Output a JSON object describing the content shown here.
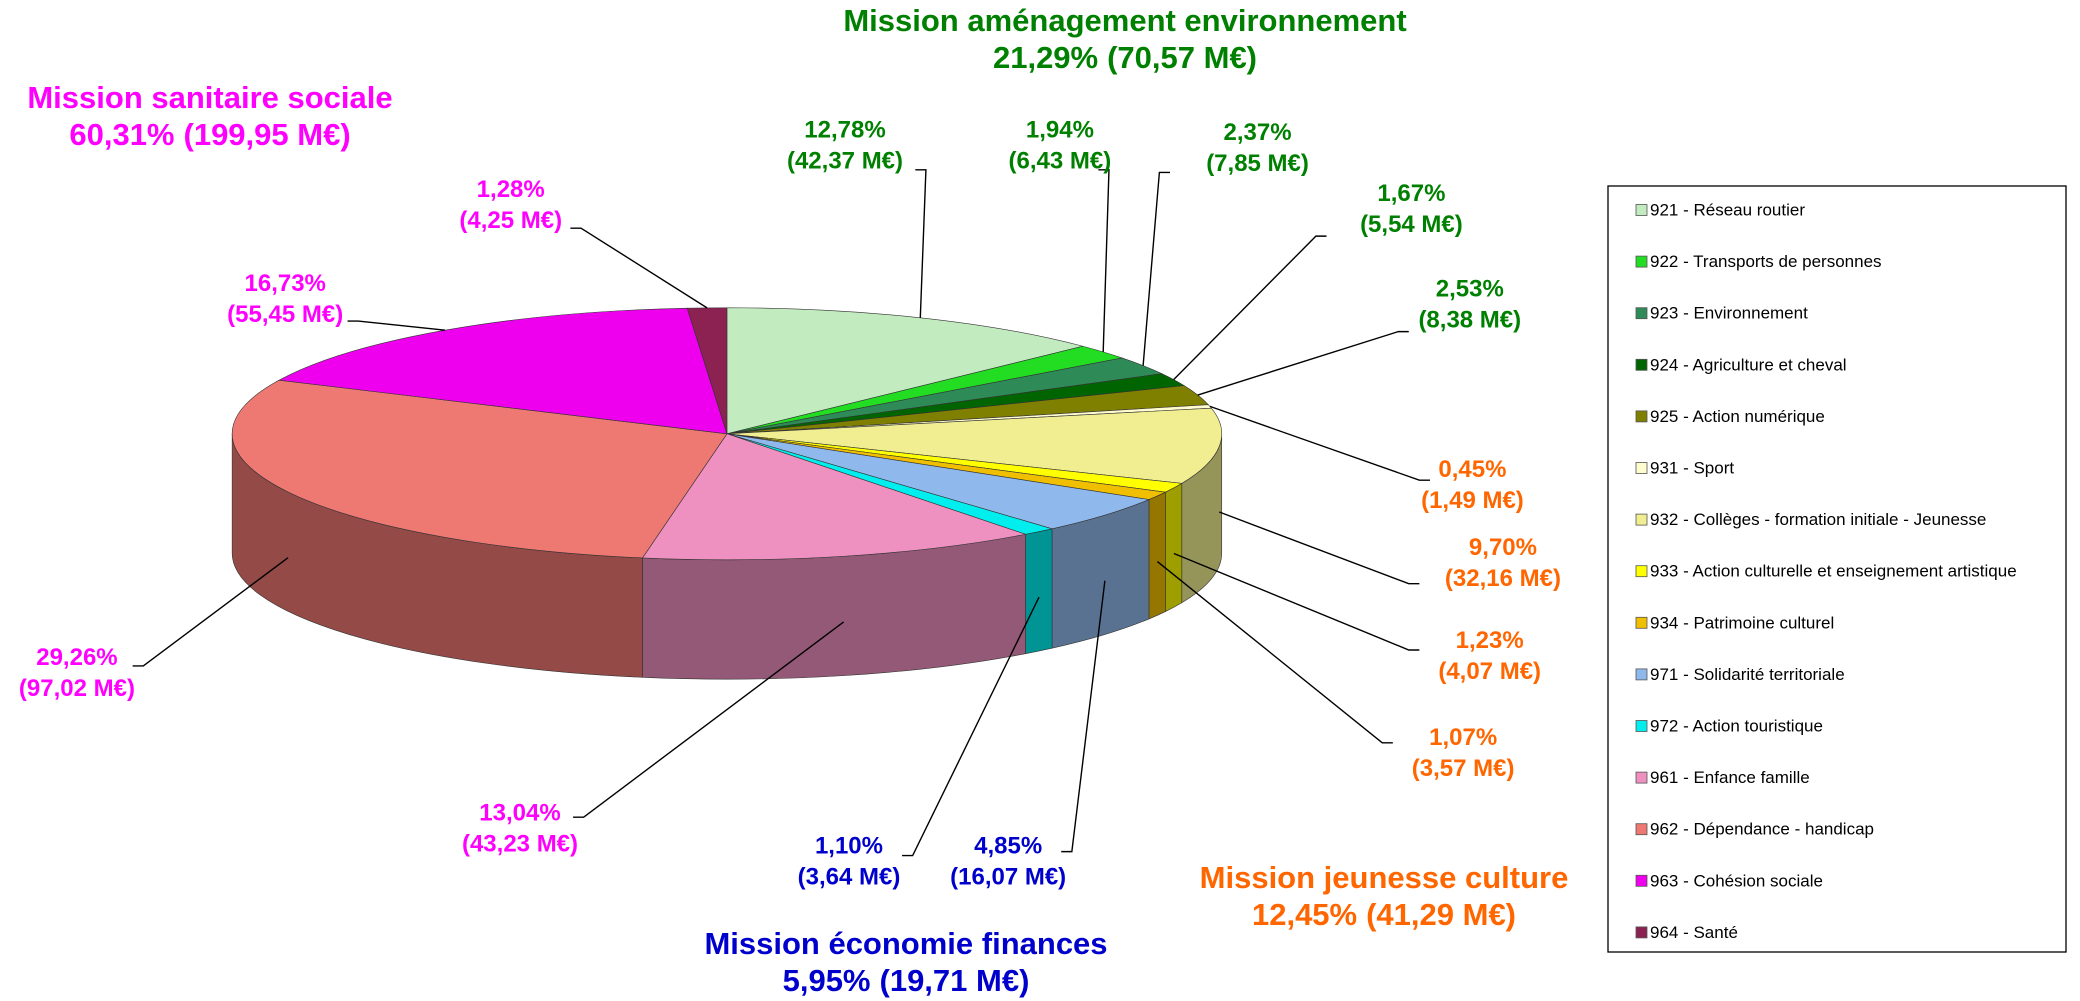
{
  "chart_data": {
    "type": "pie3d",
    "groups": [
      {
        "name": "Mission aménagement environnement",
        "color": "#008000",
        "value": 21.29,
        "value_label": "21,29%",
        "amount_label": "(70,57 M€)",
        "slices": [
          {
            "name": "921 - Réseau routier",
            "color": "#c2ecc0",
            "value": 12.78,
            "value_label": "12,78%",
            "amount_label": "(42,37 M€)"
          },
          {
            "name": "922 - Transports de personnes",
            "color": "#22dd22",
            "value": 1.94,
            "value_label": "1,94%",
            "amount_label": "(6,43 M€)"
          },
          {
            "name": "923 - Environnement",
            "color": "#2e8b57",
            "value": 2.37,
            "value_label": "2,37%",
            "amount_label": "(7,85 M€)"
          },
          {
            "name": "924 - Agriculture et cheval",
            "color": "#006400",
            "value": 1.67,
            "value_label": "1,67%",
            "amount_label": "(5,54 M€)"
          },
          {
            "name": "925 - Action numérique",
            "color": "#808000",
            "value": 2.53,
            "value_label": "2,53%",
            "amount_label": "(8,38 M€)"
          }
        ]
      },
      {
        "name": "Mission jeunesse culture",
        "color": "#ff6600",
        "value": 12.45,
        "value_label": "12,45%",
        "amount_label": "(41,29 M€)",
        "slices": [
          {
            "name": "931 - Sport",
            "color": "#fffcd0",
            "value": 0.45,
            "value_label": "0,45%",
            "amount_label": "(1,49 M€)"
          },
          {
            "name": "932 - Collèges - formation initiale - Jeunesse",
            "color": "#f0ee90",
            "value": 9.7,
            "value_label": "9,70%",
            "amount_label": "(32,16 M€)"
          },
          {
            "name": "933 - Action culturelle et enseignement artistique",
            "color": "#ffff00",
            "value": 1.23,
            "value_label": "1,23%",
            "amount_label": "(4,07 M€)"
          },
          {
            "name": "934 - Patrimoine culturel",
            "color": "#f0c000",
            "value": 1.07,
            "value_label": "1,07%",
            "amount_label": "(3,57 M€)"
          }
        ]
      },
      {
        "name": "Mission économie finances",
        "color": "#0000cc",
        "value": 5.95,
        "value_label": "5,95%",
        "amount_label": "(19,71 M€)",
        "slices": [
          {
            "name": "971 - Solidarité territoriale",
            "color": "#8fb8ec",
            "value": 4.85,
            "value_label": "4,85%",
            "amount_label": "(16,07 M€)"
          },
          {
            "name": "972 - Action touristique",
            "color": "#00eeee",
            "value": 1.1,
            "value_label": "1,10%",
            "amount_label": "(3,64 M€)"
          }
        ]
      },
      {
        "name": "Mission sanitaire sociale",
        "color": "#ff00ff",
        "value": 60.31,
        "value_label": "60,31%",
        "amount_label": "(199,95 M€)",
        "slices": [
          {
            "name": "961 - Enfance famille",
            "color": "#ee90c0",
            "value": 13.04,
            "value_label": "13,04%",
            "amount_label": "(43,23 M€)"
          },
          {
            "name": "962 - Dépendance - handicap",
            "color": "#ee7872",
            "value": 29.26,
            "value_label": "29,26%",
            "amount_label": "(97,02 M€)"
          },
          {
            "name": "963 - Cohésion sociale",
            "color": "#ee00ee",
            "value": 16.73,
            "value_label": "16,73%",
            "amount_label": "(55,45 M€)"
          },
          {
            "name": "964 - Santé",
            "color": "#8b2252",
            "value": 1.28,
            "value_label": "1,28%",
            "amount_label": "(4,25 M€)"
          }
        ]
      }
    ]
  }
}
